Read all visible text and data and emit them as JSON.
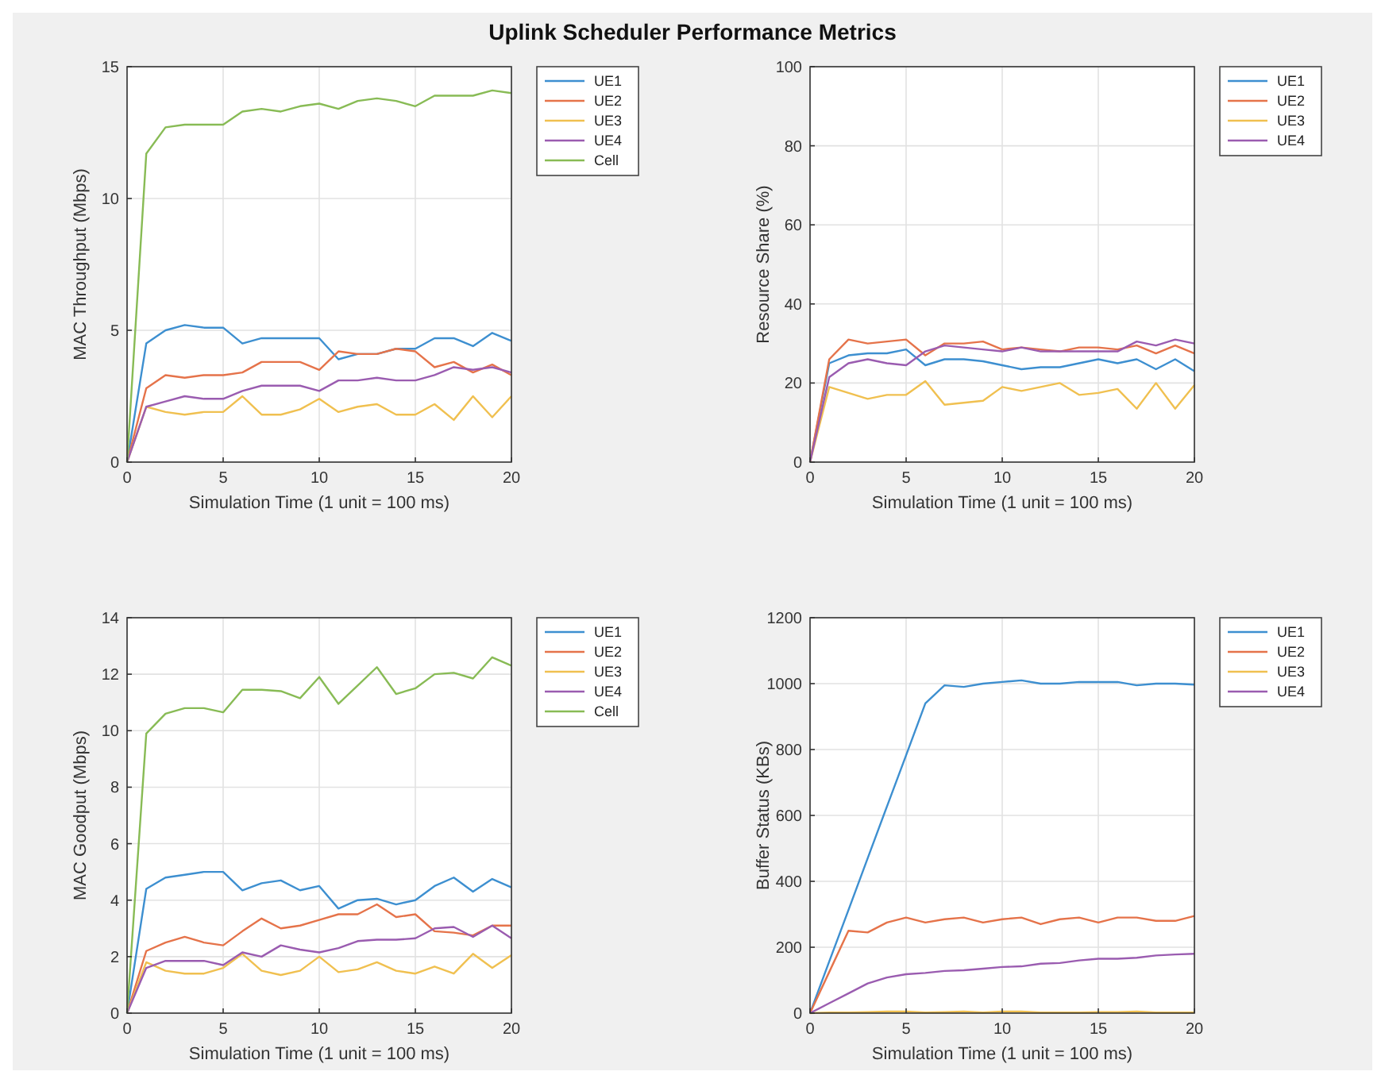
{
  "chart_data": [
    {
      "type": "line",
      "title": "Uplink Scheduler Performance Metrics",
      "xlabel": "Simulation Time (1 unit = 100 ms)",
      "ylabel": "MAC Throughput (Mbps)",
      "x": [
        0,
        1,
        2,
        3,
        4,
        5,
        6,
        7,
        8,
        9,
        10,
        11,
        12,
        13,
        14,
        15,
        16,
        17,
        18,
        19,
        20
      ],
      "xlim": [
        0,
        20
      ],
      "xticks": [
        0,
        5,
        10,
        15,
        20
      ],
      "ylim": [
        0,
        15
      ],
      "yticks": [
        0,
        5,
        10,
        15
      ],
      "grid": true,
      "legend": "top right",
      "marker": "none",
      "line_style": "solid",
      "series": [
        {
          "name": "UE1",
          "color": "#3d8fd0",
          "values": [
            0,
            4.5,
            5.0,
            5.2,
            5.1,
            5.1,
            4.5,
            4.7,
            4.7,
            4.7,
            4.7,
            3.9,
            4.1,
            4.1,
            4.3,
            4.3,
            4.7,
            4.7,
            4.4,
            4.9,
            4.6
          ]
        },
        {
          "name": "UE2",
          "color": "#e5734a",
          "values": [
            0,
            2.8,
            3.3,
            3.2,
            3.3,
            3.3,
            3.4,
            3.8,
            3.8,
            3.8,
            3.5,
            4.2,
            4.1,
            4.1,
            4.3,
            4.2,
            3.6,
            3.8,
            3.4,
            3.7,
            3.3
          ]
        },
        {
          "name": "UE3",
          "color": "#f0c050",
          "values": [
            0,
            2.1,
            1.9,
            1.8,
            1.9,
            1.9,
            2.5,
            1.8,
            1.8,
            2.0,
            2.4,
            1.9,
            2.1,
            2.2,
            1.8,
            1.8,
            2.2,
            1.6,
            2.5,
            1.7,
            2.5
          ]
        },
        {
          "name": "UE4",
          "color": "#9a5cb0",
          "values": [
            0,
            2.1,
            2.3,
            2.5,
            2.4,
            2.4,
            2.7,
            2.9,
            2.9,
            2.9,
            2.7,
            3.1,
            3.1,
            3.2,
            3.1,
            3.1,
            3.3,
            3.6,
            3.5,
            3.6,
            3.4
          ]
        },
        {
          "name": "Cell",
          "color": "#88bb55",
          "values": [
            0,
            11.7,
            12.7,
            12.8,
            12.8,
            12.8,
            13.3,
            13.4,
            13.3,
            13.5,
            13.6,
            13.4,
            13.7,
            13.8,
            13.7,
            13.5,
            13.9,
            13.9,
            13.9,
            14.1,
            14.0
          ]
        }
      ]
    },
    {
      "type": "line",
      "xlabel": "Simulation Time (1 unit = 100 ms)",
      "ylabel": "Resource Share (%)",
      "x": [
        0,
        1,
        2,
        3,
        4,
        5,
        6,
        7,
        8,
        9,
        10,
        11,
        12,
        13,
        14,
        15,
        16,
        17,
        18,
        19,
        20
      ],
      "xlim": [
        0,
        20
      ],
      "xticks": [
        0,
        5,
        10,
        15,
        20
      ],
      "ylim": [
        0,
        100
      ],
      "yticks": [
        0,
        20,
        40,
        60,
        80,
        100
      ],
      "grid": true,
      "legend": "top right",
      "marker": "none",
      "line_style": "solid",
      "series": [
        {
          "name": "UE1",
          "color": "#3d8fd0",
          "values": [
            0,
            25,
            27,
            27.5,
            27.5,
            28.5,
            24.5,
            26,
            26,
            25.5,
            24.5,
            23.5,
            24,
            24,
            25,
            26,
            25,
            26,
            23.5,
            26,
            23
          ]
        },
        {
          "name": "UE2",
          "color": "#e5734a",
          "values": [
            0,
            26,
            31,
            30,
            30.5,
            31,
            27,
            30,
            30,
            30.5,
            28.5,
            29,
            28.5,
            28,
            29,
            29,
            28.5,
            29.5,
            27.5,
            29.5,
            27.5
          ]
        },
        {
          "name": "UE3",
          "color": "#f0c050",
          "values": [
            0,
            19,
            17.5,
            16,
            17,
            17,
            20.5,
            14.5,
            15,
            15.5,
            19,
            18,
            19,
            20,
            17,
            17.5,
            18.5,
            13.5,
            20,
            13.5,
            19.5
          ]
        },
        {
          "name": "UE4",
          "color": "#9a5cb0",
          "values": [
            0,
            21.5,
            25,
            26,
            25,
            24.5,
            28,
            29.5,
            29,
            28.5,
            28,
            29,
            28,
            28,
            28,
            28,
            28,
            30.5,
            29.5,
            31,
            30
          ]
        }
      ]
    },
    {
      "type": "line",
      "xlabel": "Simulation Time (1 unit = 100 ms)",
      "ylabel": "MAC Goodput (Mbps)",
      "x": [
        0,
        1,
        2,
        3,
        4,
        5,
        6,
        7,
        8,
        9,
        10,
        11,
        12,
        13,
        14,
        15,
        16,
        17,
        18,
        19,
        20
      ],
      "xlim": [
        0,
        20
      ],
      "xticks": [
        0,
        5,
        10,
        15,
        20
      ],
      "ylim": [
        0,
        14
      ],
      "yticks": [
        0,
        2,
        4,
        6,
        8,
        10,
        12,
        14
      ],
      "grid": true,
      "legend": "top right",
      "marker": "none",
      "line_style": "solid",
      "series": [
        {
          "name": "UE1",
          "color": "#3d8fd0",
          "values": [
            0,
            4.4,
            4.8,
            4.9,
            5.0,
            5.0,
            4.35,
            4.6,
            4.7,
            4.35,
            4.5,
            3.7,
            4.0,
            4.05,
            3.85,
            4.0,
            4.5,
            4.8,
            4.3,
            4.75,
            4.45
          ]
        },
        {
          "name": "UE2",
          "color": "#e5734a",
          "values": [
            0,
            2.2,
            2.5,
            2.7,
            2.5,
            2.4,
            2.9,
            3.35,
            3.0,
            3.1,
            3.3,
            3.5,
            3.5,
            3.85,
            3.4,
            3.5,
            2.9,
            2.85,
            2.75,
            3.1,
            3.1
          ]
        },
        {
          "name": "UE3",
          "color": "#f0c050",
          "values": [
            0,
            1.8,
            1.5,
            1.4,
            1.4,
            1.6,
            2.1,
            1.5,
            1.35,
            1.5,
            2.0,
            1.45,
            1.55,
            1.8,
            1.5,
            1.4,
            1.65,
            1.4,
            2.1,
            1.6,
            2.05
          ]
        },
        {
          "name": "UE4",
          "color": "#9a5cb0",
          "values": [
            0,
            1.6,
            1.85,
            1.85,
            1.85,
            1.7,
            2.15,
            2.0,
            2.4,
            2.25,
            2.15,
            2.3,
            2.55,
            2.6,
            2.6,
            2.65,
            3.0,
            3.05,
            2.7,
            3.1,
            2.65
          ]
        },
        {
          "name": "Cell",
          "color": "#88bb55",
          "values": [
            0,
            9.9,
            10.6,
            10.8,
            10.8,
            10.65,
            11.45,
            11.45,
            11.4,
            11.15,
            11.9,
            10.95,
            11.6,
            12.25,
            11.3,
            11.5,
            12.0,
            12.05,
            11.85,
            12.6,
            12.3
          ]
        }
      ]
    },
    {
      "type": "line",
      "xlabel": "Simulation Time (1 unit = 100 ms)",
      "ylabel": "Buffer Status (KBs)",
      "x": [
        0,
        1,
        2,
        3,
        4,
        5,
        6,
        7,
        8,
        9,
        10,
        11,
        12,
        13,
        14,
        15,
        16,
        17,
        18,
        19,
        20
      ],
      "xlim": [
        0,
        20
      ],
      "xticks": [
        0,
        5,
        10,
        15,
        20
      ],
      "ylim": [
        0,
        1200
      ],
      "yticks": [
        0,
        200,
        400,
        600,
        800,
        1000,
        1200
      ],
      "grid": true,
      "legend": "top right",
      "marker": "none",
      "line_style": "solid",
      "series": [
        {
          "name": "UE1",
          "color": "#3d8fd0",
          "values": [
            0,
            157,
            313,
            470,
            627,
            783,
            940,
            995,
            990,
            1000,
            1005,
            1010,
            1000,
            1000,
            1005,
            1005,
            1005,
            995,
            1000,
            1000,
            997
          ]
        },
        {
          "name": "UE2",
          "color": "#e5734a",
          "values": [
            0,
            125,
            250,
            245,
            275,
            290,
            275,
            285,
            290,
            275,
            285,
            290,
            270,
            285,
            290,
            275,
            290,
            290,
            280,
            280,
            295
          ]
        },
        {
          "name": "UE3",
          "color": "#f0c050",
          "values": [
            0,
            2,
            2,
            3,
            5,
            5,
            2,
            3,
            5,
            2,
            5,
            5,
            2,
            2,
            2,
            3,
            3,
            5,
            2,
            2,
            2
          ]
        },
        {
          "name": "UE4",
          "color": "#9a5cb0",
          "values": [
            0,
            30,
            60,
            90,
            108,
            118,
            122,
            128,
            130,
            135,
            140,
            142,
            150,
            152,
            160,
            165,
            165,
            168,
            175,
            178,
            180
          ]
        }
      ]
    }
  ]
}
